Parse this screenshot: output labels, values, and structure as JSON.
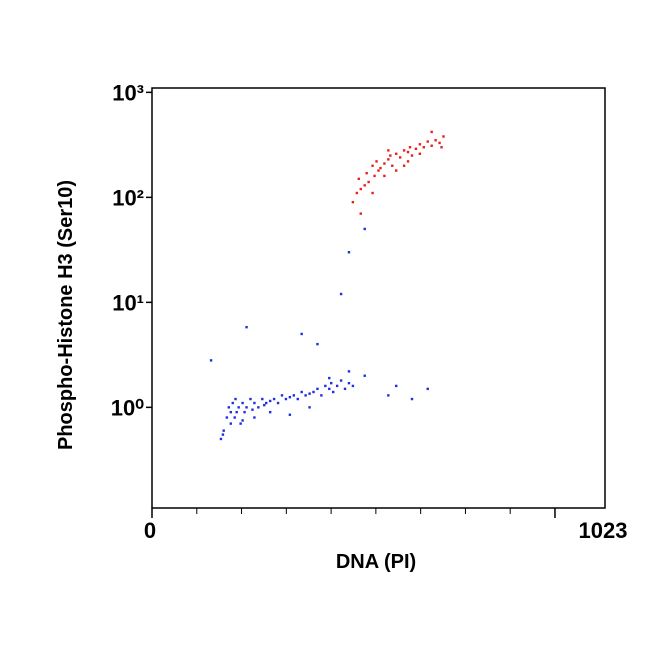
{
  "chart_data": {
    "type": "scatter",
    "xlabel": "DNA (PI)",
    "ylabel": "Phospho-Histone H3 (Ser10)",
    "xlim": [
      0,
      1150
    ],
    "xticks": [
      0,
      1023
    ],
    "xminorticks": [
      113.7,
      227.3,
      341,
      454.7,
      568.3,
      682,
      795.7,
      909.3
    ],
    "ylim": [
      0.11,
      1100
    ],
    "ylog": true,
    "yticks": [
      {
        "value": 1,
        "label": "10⁰"
      },
      {
        "value": 10,
        "label": "10¹"
      },
      {
        "value": 100,
        "label": "10²"
      },
      {
        "value": 1000,
        "label": "10³"
      }
    ],
    "series": [
      {
        "color": "#1f2fe0",
        "x": [
          175,
          182,
          190,
          195,
          200,
          205,
          210,
          212,
          215,
          220,
          225,
          230,
          235,
          240,
          250,
          255,
          260,
          270,
          280,
          285,
          290,
          300,
          310,
          320,
          330,
          340,
          350,
          360,
          370,
          380,
          390,
          400,
          410,
          420,
          430,
          440,
          450,
          455,
          460,
          470,
          480,
          490,
          500,
          510,
          180,
          200,
          230,
          260,
          300,
          350,
          400,
          450,
          500,
          540,
          600,
          620,
          660,
          700,
          150,
          240,
          380,
          420,
          480,
          500,
          540
        ],
        "y": [
          0.5,
          0.6,
          0.8,
          1.0,
          0.9,
          1.1,
          0.8,
          1.2,
          0.9,
          1.0,
          0.7,
          1.1,
          0.9,
          1.0,
          1.2,
          0.95,
          1.1,
          1.0,
          1.2,
          1.05,
          1.1,
          1.15,
          1.2,
          1.1,
          1.3,
          1.2,
          1.25,
          1.3,
          1.2,
          1.4,
          1.3,
          1.35,
          1.4,
          1.5,
          1.3,
          1.6,
          1.5,
          1.7,
          1.4,
          1.6,
          1.8,
          1.5,
          1.7,
          1.6,
          0.55,
          0.7,
          0.75,
          0.8,
          0.9,
          0.85,
          1.0,
          1.9,
          2.2,
          2.0,
          1.3,
          1.6,
          1.2,
          1.5,
          2.8,
          5.8,
          5,
          4,
          12,
          30,
          50
        ]
      },
      {
        "color": "#e8201a",
        "x": [
          510,
          520,
          525,
          530,
          540,
          545,
          550,
          560,
          565,
          570,
          575,
          580,
          590,
          600,
          605,
          610,
          620,
          630,
          640,
          650,
          655,
          660,
          670,
          680,
          690,
          700,
          710,
          720,
          730,
          740,
          530,
          560,
          590,
          620,
          650,
          680,
          710,
          735,
          600,
          640
        ],
        "y": [
          90,
          110,
          150,
          120,
          130,
          170,
          140,
          200,
          160,
          220,
          180,
          190,
          210,
          230,
          250,
          200,
          260,
          240,
          280,
          270,
          300,
          250,
          290,
          320,
          300,
          340,
          310,
          350,
          330,
          380,
          70,
          110,
          160,
          180,
          220,
          260,
          420,
          300,
          280,
          200
        ]
      }
    ]
  }
}
